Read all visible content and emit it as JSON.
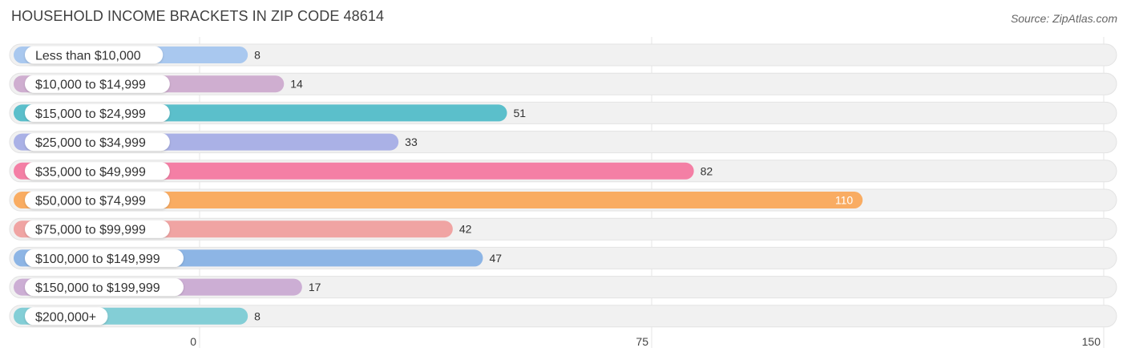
{
  "header": {
    "title": "HOUSEHOLD INCOME BRACKETS IN ZIP CODE 48614",
    "source": "Source: ZipAtlas.com"
  },
  "chart_data": {
    "type": "bar",
    "orientation": "horizontal",
    "title": "HOUSEHOLD INCOME BRACKETS IN ZIP CODE 48614",
    "categories": [
      "Less than $10,000",
      "$10,000 to $14,999",
      "$15,000 to $24,999",
      "$25,000 to $34,999",
      "$35,000 to $49,999",
      "$50,000 to $74,999",
      "$75,000 to $99,999",
      "$100,000 to $149,999",
      "$150,000 to $199,999",
      "$200,000+"
    ],
    "values": [
      8,
      14,
      51,
      33,
      82,
      110,
      42,
      47,
      17,
      8
    ],
    "colors": [
      "#a9c8ef",
      "#cfaed0",
      "#5bbfcb",
      "#aab1e6",
      "#f47fa5",
      "#f9ac62",
      "#f0a4a3",
      "#8db5e5",
      "#ccaed4",
      "#83ced6"
    ],
    "xlim": [
      0,
      150
    ],
    "xticks": [
      0,
      75,
      150
    ],
    "xlabel": "",
    "ylabel": "",
    "grid": true
  }
}
